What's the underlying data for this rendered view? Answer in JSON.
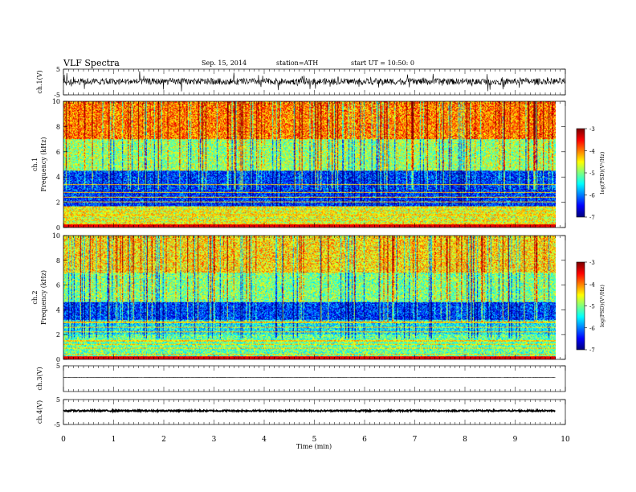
{
  "header": {
    "title": "VLF Spectra",
    "date": "Sep. 15, 2014",
    "station": "station=ATH",
    "start": "start  UT =    10:50: 0"
  },
  "chart_data": [
    {
      "type": "line",
      "panel": "ch1-waveform",
      "ylabel": "ch.1(V)",
      "ylim": [
        -5,
        5
      ],
      "yticks": [
        "5",
        "-5"
      ],
      "xlim": [
        0,
        10
      ],
      "series": [
        {
          "mean": 0.2,
          "noise_amplitude": 2.5
        }
      ]
    },
    {
      "type": "heatmap",
      "panel": "ch1-spectrogram",
      "ylabel_top": "ch.1",
      "ylabel": "Frequency (kHz)",
      "ylim": [
        0,
        10
      ],
      "yticks": [
        "0",
        "2",
        "4",
        "6",
        "8",
        "10"
      ],
      "xlim": [
        0,
        9.8
      ],
      "colorbar": {
        "label": "log(PSD)(V²/Hz)",
        "range": [
          -7,
          -3
        ],
        "ticks": [
          "-3",
          "-4",
          "-5",
          "-6",
          "-7"
        ]
      },
      "bands": [
        {
          "from_khz": 0,
          "to_khz": 1.7,
          "log_psd": -4.6
        },
        {
          "from_khz": 1.7,
          "to_khz": 4.5,
          "log_psd": -6.3
        },
        {
          "from_khz": 4.5,
          "to_khz": 7.0,
          "log_psd": -4.9
        },
        {
          "from_khz": 7.0,
          "to_khz": 10,
          "log_psd": -4.0
        }
      ],
      "lines_khz": [
        0.3,
        0.6,
        1.0,
        1.3,
        1.6,
        2.05,
        2.4,
        2.8,
        3.4
      ]
    },
    {
      "type": "heatmap",
      "panel": "ch2-spectrogram",
      "ylabel_top": "ch.2",
      "ylabel": "Frequency (kHz)",
      "ylim": [
        0,
        10
      ],
      "yticks": [
        "0",
        "2",
        "4",
        "6",
        "8",
        "10"
      ],
      "xlim": [
        0,
        9.8
      ],
      "colorbar": {
        "label": "log(PSD)(V²/Hz)",
        "range": [
          -7,
          -3
        ],
        "ticks": [
          "-3",
          "-4",
          "-5",
          "-6",
          "-7"
        ]
      },
      "bands": [
        {
          "from_khz": 0,
          "to_khz": 2.0,
          "log_psd": -5.1
        },
        {
          "from_khz": 2.0,
          "to_khz": 3.2,
          "log_psd": -5.5
        },
        {
          "from_khz": 3.2,
          "to_khz": 4.6,
          "log_psd": -6.3
        },
        {
          "from_khz": 4.6,
          "to_khz": 7.0,
          "log_psd": -5.0
        },
        {
          "from_khz": 7.0,
          "to_khz": 10,
          "log_psd": -4.4
        }
      ],
      "lines_khz": [
        0.4,
        0.9,
        1.2,
        1.5,
        2.2,
        2.6,
        3.0
      ]
    },
    {
      "type": "line",
      "panel": "ch3-waveform",
      "ylabel": "ch.3(V)",
      "ylim": [
        -5,
        5
      ],
      "yticks": [
        "5"
      ],
      "xlim": [
        0,
        9.8
      ],
      "series": [
        {
          "mean": 0.5,
          "noise_amplitude": 0.1
        }
      ]
    },
    {
      "type": "line",
      "panel": "ch4-waveform",
      "ylabel": "ch.4(V)",
      "ylim": [
        -5,
        5
      ],
      "yticks": [
        "5",
        "-5"
      ],
      "xlim": [
        0,
        9.8
      ],
      "series": [
        {
          "mean": 0.5,
          "noise_amplitude": 0.6
        }
      ]
    }
  ],
  "xaxis": {
    "label": "Time  (min)",
    "ticks": [
      "0",
      "1",
      "2",
      "3",
      "4",
      "5",
      "6",
      "7",
      "8",
      "9",
      "10"
    ]
  }
}
